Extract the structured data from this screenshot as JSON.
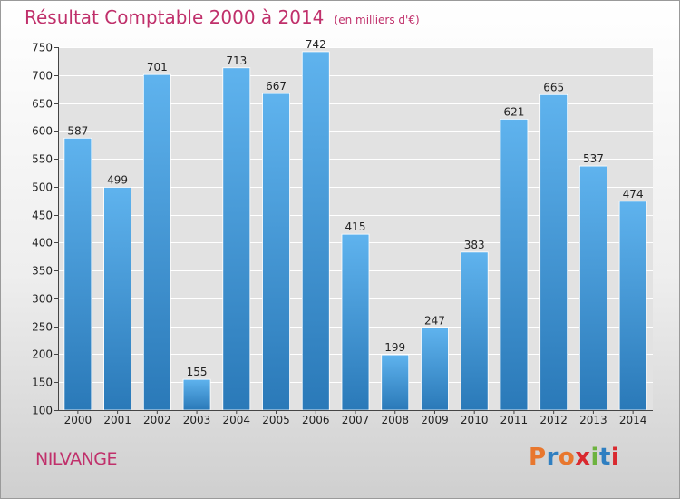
{
  "header": {
    "title": "Résultat Comptable 2000 à 2014",
    "unit": "(en milliers d'€)"
  },
  "footer": {
    "commune": "NILVANGE",
    "logo": "Proxiti",
    "logo_colors": [
      "#e8772e",
      "#2f7fc1",
      "#e8772e",
      "#d9292f",
      "#6db33f",
      "#2f7fc1",
      "#d9292f"
    ]
  },
  "colors": {
    "bar_light": "#5fb3ee",
    "bar_dark": "#2a79b8",
    "title": "#c0306b",
    "grid": "#ffffff"
  },
  "chart_data": {
    "type": "bar",
    "title": "Résultat Comptable 2000 à 2014",
    "subtitle": "(en milliers d'€)",
    "categories": [
      "2000",
      "2001",
      "2002",
      "2003",
      "2004",
      "2005",
      "2006",
      "2007",
      "2008",
      "2009",
      "2010",
      "2011",
      "2012",
      "2013",
      "2014"
    ],
    "values": [
      587,
      499,
      701,
      155,
      713,
      667,
      742,
      415,
      199,
      247,
      383,
      621,
      665,
      537,
      474
    ],
    "ylim": [
      100,
      750
    ],
    "yticks": [
      100,
      150,
      200,
      250,
      300,
      350,
      400,
      450,
      500,
      550,
      600,
      650,
      700,
      750
    ],
    "grid": true,
    "xlabel": "",
    "ylabel": ""
  }
}
